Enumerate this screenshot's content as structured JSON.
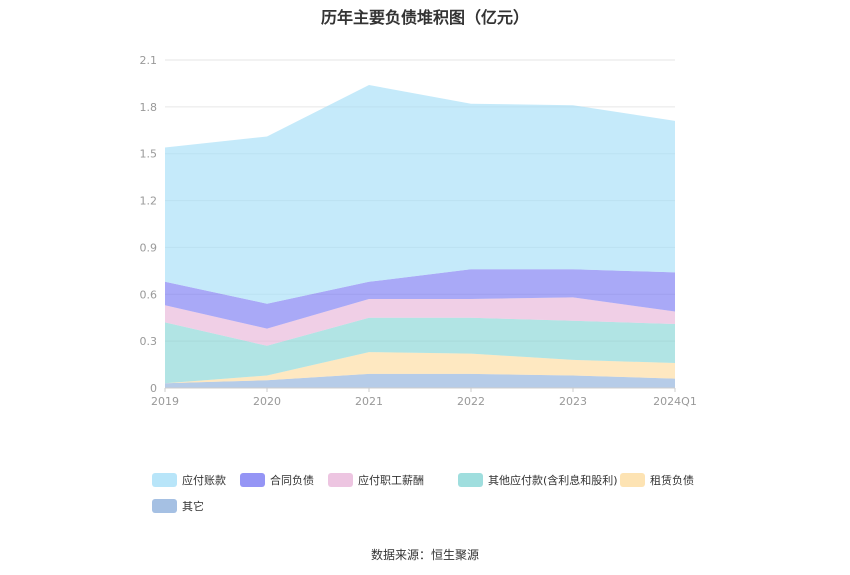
{
  "title": "历年主要负债堆积图（亿元）",
  "source": "数据来源：恒生聚源",
  "chart_data": {
    "type": "area",
    "stacked": true,
    "categories": [
      "2019",
      "2020",
      "2021",
      "2022",
      "2023",
      "2024Q1"
    ],
    "y_ticks": [
      "0",
      "0.3",
      "0.6",
      "0.9",
      "1.2",
      "1.5",
      "1.8",
      "2.1"
    ],
    "ylim": [
      0,
      2.1
    ],
    "grid": true,
    "legend_position": "bottom",
    "series": [
      {
        "name": "其它",
        "color": "#8fb0dc",
        "values": [
          0.03,
          0.05,
          0.09,
          0.09,
          0.08,
          0.06
        ]
      },
      {
        "name": "租赁负债",
        "color": "#fddca0",
        "values": [
          0.0,
          0.03,
          0.14,
          0.13,
          0.1,
          0.1
        ]
      },
      {
        "name": "其他应付款(含利息和股利)",
        "color": "#87d6d6",
        "values": [
          0.39,
          0.19,
          0.22,
          0.23,
          0.25,
          0.25
        ]
      },
      {
        "name": "应付职工薪酬",
        "color": "#e8b6d9",
        "values": [
          0.11,
          0.11,
          0.12,
          0.12,
          0.15,
          0.08
        ]
      },
      {
        "name": "合同负债",
        "color": "#7b7bf2",
        "values": [
          0.15,
          0.16,
          0.11,
          0.19,
          0.18,
          0.25
        ]
      },
      {
        "name": "应付账款",
        "color": "#a6dff8",
        "values": [
          0.86,
          1.07,
          1.26,
          1.06,
          1.05,
          0.97
        ]
      }
    ],
    "legend_order": [
      "应付账款",
      "合同负债",
      "应付职工薪酬",
      "其他应付款(含利息和股利)",
      "租赁负债",
      "其它"
    ]
  }
}
